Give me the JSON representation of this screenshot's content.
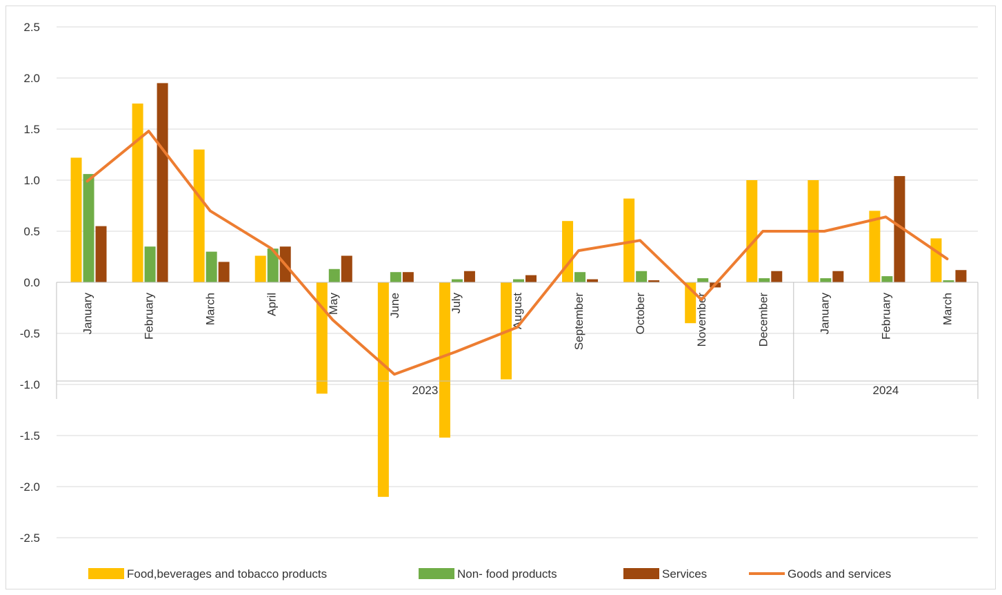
{
  "chart_data": {
    "type": "bar",
    "title": "",
    "xlabel": "",
    "ylabel": "",
    "ylim": [
      -2.5,
      2.5
    ],
    "yticks": [
      2.5,
      2.0,
      1.5,
      1.0,
      0.5,
      0.0,
      -0.5,
      -1.0,
      -1.5,
      -2.0,
      -2.5
    ],
    "ytick_labels": [
      "2.5",
      "2.0",
      "1.5",
      "1.0",
      "0.5",
      "0.0",
      "-0.5",
      "-1.0",
      "-1.5",
      "-2.0",
      "-2.5"
    ],
    "grid": true,
    "legend_position": "bottom",
    "categories": [
      "January",
      "February",
      "March",
      "April",
      "May",
      "June",
      "July",
      "August",
      "September",
      "October",
      "November",
      "December",
      "January",
      "February",
      "March"
    ],
    "year_groups": [
      {
        "label": "2023",
        "count": 12
      },
      {
        "label": "2024",
        "count": 3
      }
    ],
    "series": [
      {
        "name": "Food,beverages and tobacco products",
        "type": "bar",
        "color": "#FFC000",
        "values": [
          1.22,
          1.75,
          1.3,
          0.26,
          -1.09,
          -2.1,
          -1.52,
          -0.95,
          0.6,
          0.82,
          -0.4,
          1.0,
          1.0,
          0.7,
          0.43
        ]
      },
      {
        "name": "Non- food products",
        "type": "bar",
        "color": "#70AD47",
        "values": [
          1.06,
          0.35,
          0.3,
          0.33,
          0.13,
          0.1,
          0.03,
          0.03,
          0.1,
          0.11,
          0.04,
          0.04,
          0.04,
          0.06,
          0.02
        ]
      },
      {
        "name": "Services",
        "type": "bar",
        "color": "#9E480E",
        "values": [
          0.55,
          1.95,
          0.2,
          0.35,
          0.26,
          0.1,
          0.11,
          0.07,
          0.03,
          0.02,
          -0.05,
          0.11,
          0.11,
          1.04,
          0.12
        ]
      },
      {
        "name": "Goods and services",
        "type": "line",
        "color": "#ED7D31",
        "values": [
          0.99,
          1.48,
          0.7,
          0.33,
          -0.37,
          -0.9,
          -0.68,
          -0.44,
          0.31,
          0.41,
          -0.17,
          0.5,
          0.5,
          0.64,
          0.23
        ]
      }
    ]
  }
}
